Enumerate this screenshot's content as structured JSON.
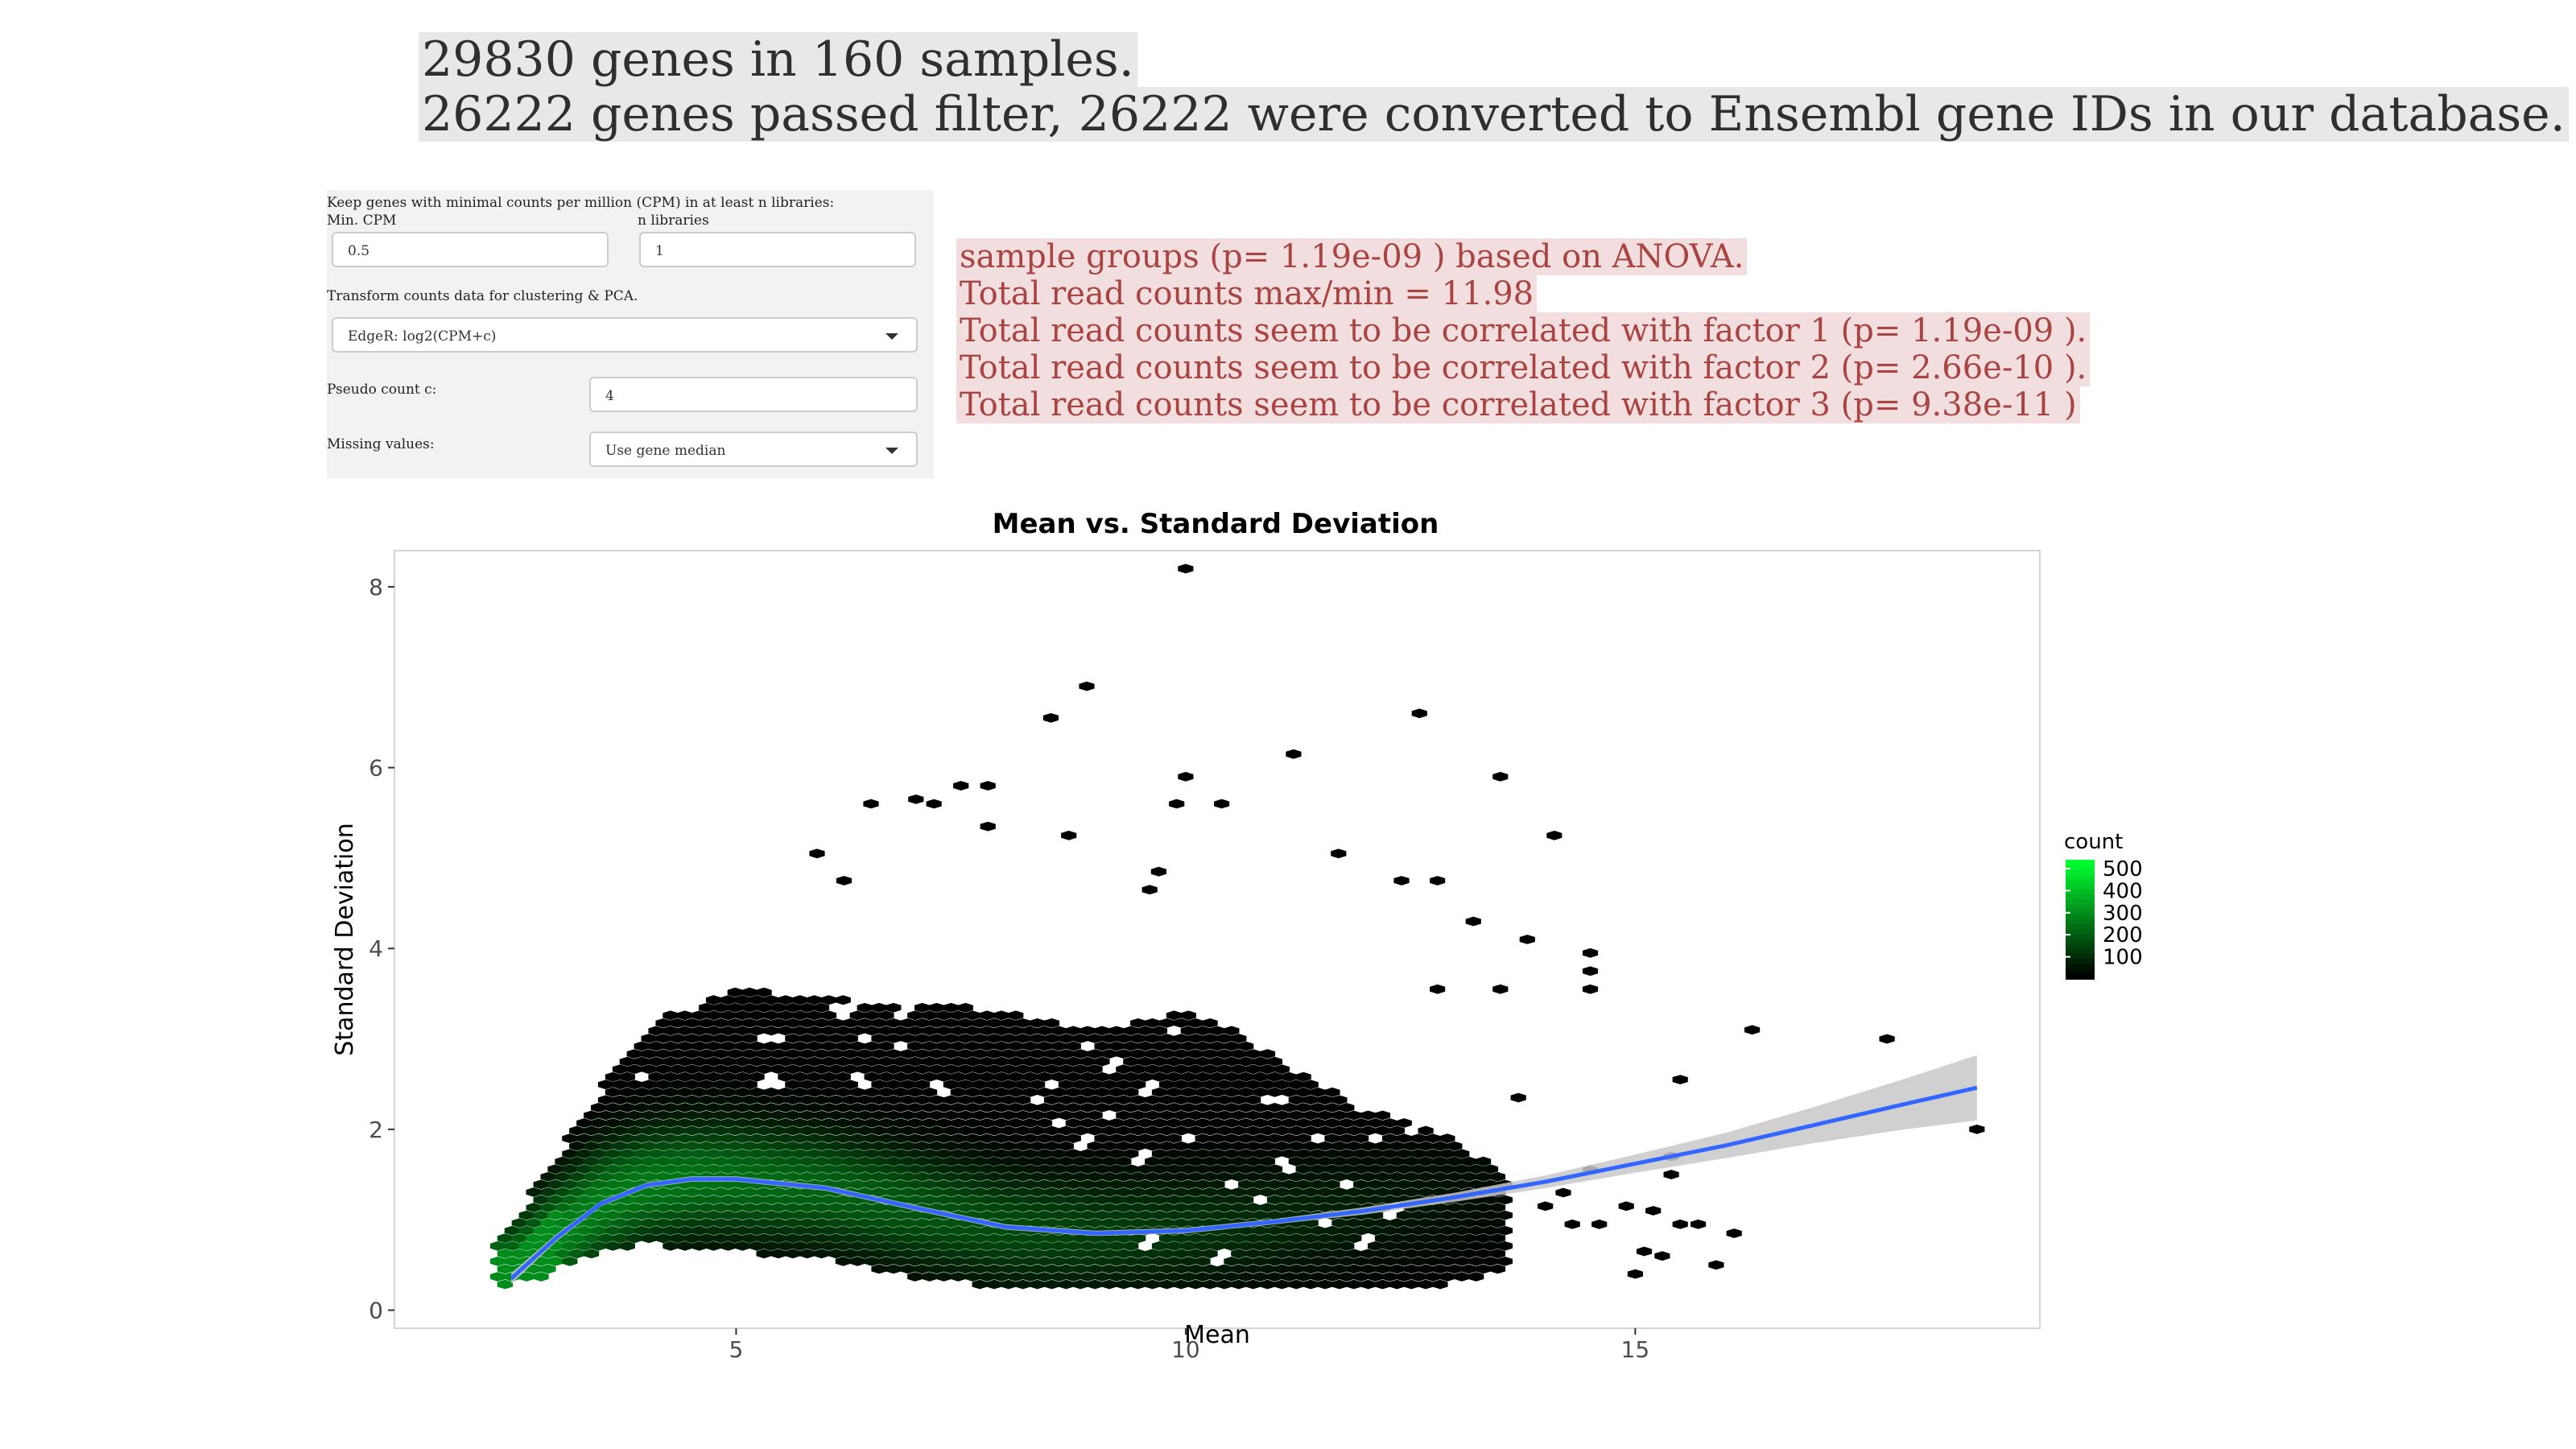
{
  "summary": {
    "line1": "29830 genes in 160 samples.",
    "line2": "26222 genes passed filter, 26222 were converted to Ensembl gene IDs in our database."
  },
  "filter_panel": {
    "description": "Keep genes with minimal counts per million (CPM) in at least n libraries:",
    "min_cpm_label": "Min. CPM",
    "min_cpm_value": "0.5",
    "n_libraries_label": "n libraries",
    "n_libraries_value": "1",
    "transform_label": "Transform counts data for clustering & PCA.",
    "transform_value": "EdgeR: log2(CPM+c)",
    "pseudo_label": "Pseudo count c:",
    "pseudo_value": "4",
    "missing_label": "Missing values:",
    "missing_value": "Use gene median"
  },
  "messages": [
    "sample groups (p= 1.19e-09 ) based on ANOVA.",
    "Total read counts max/min = 11.98",
    "Total read counts seem to be correlated with factor 1 (p= 1.19e-09 ).",
    "Total read counts seem to be correlated with factor 2 (p= 2.66e-10 ).",
    "Total read counts seem to be correlated with factor 3 (p= 9.38e-11 )"
  ],
  "colors": {
    "hex_low": "#000000",
    "hex_high": "#00ff2f",
    "smooth_line": "#3366ff",
    "confidence_band": "#c8c8c8",
    "message_text": "#a94442",
    "message_bg": "#f2dede"
  },
  "chart_data": {
    "type": "heatmap",
    "subtype": "hexbin scatter with loess smooth",
    "title": "Mean vs. Standard Deviation",
    "xlabel": "Mean",
    "ylabel": "Standard Deviation",
    "xlim": [
      1.2,
      19.5
    ],
    "ylim": [
      -0.2,
      8.4
    ],
    "xticks": [
      5,
      10,
      15
    ],
    "yticks": [
      0,
      2,
      4,
      6,
      8
    ],
    "legend": {
      "title": "count",
      "position": "right",
      "ticks": [
        100,
        200,
        300,
        400,
        500
      ],
      "max": 540
    },
    "smooth_curve": {
      "x": [
        2.5,
        3.0,
        3.5,
        4.0,
        4.5,
        5.0,
        6.0,
        7.0,
        8.0,
        9.0,
        10.0,
        11.0,
        12.0,
        13.0,
        14.0,
        15.0,
        16.0,
        17.0,
        18.0,
        18.8
      ],
      "y": [
        0.35,
        0.8,
        1.18,
        1.38,
        1.45,
        1.45,
        1.35,
        1.13,
        0.92,
        0.85,
        0.88,
        0.98,
        1.1,
        1.25,
        1.42,
        1.62,
        1.82,
        2.05,
        2.28,
        2.46
      ],
      "se": [
        0.06,
        0.04,
        0.03,
        0.03,
        0.03,
        0.03,
        0.03,
        0.03,
        0.03,
        0.03,
        0.03,
        0.03,
        0.04,
        0.05,
        0.07,
        0.1,
        0.14,
        0.2,
        0.28,
        0.36
      ]
    },
    "density_envelope": {
      "mean": [
        2.4,
        2.8,
        3.2,
        3.6,
        4.0,
        4.5,
        5.0,
        5.5,
        6.0,
        6.5,
        7.0,
        7.5,
        8.0,
        8.5,
        9.0,
        9.5,
        10.0,
        10.5,
        11.0,
        11.5,
        12.0,
        12.5,
        13.0,
        13.5
      ],
      "sd_low": [
        0.25,
        0.35,
        0.55,
        0.7,
        0.72,
        0.68,
        0.65,
        0.6,
        0.55,
        0.45,
        0.35,
        0.3,
        0.25,
        0.22,
        0.22,
        0.22,
        0.22,
        0.22,
        0.22,
        0.22,
        0.22,
        0.25,
        0.3,
        0.45
      ],
      "sd_high": [
        0.8,
        1.4,
        2.0,
        2.6,
        3.1,
        3.4,
        3.55,
        3.5,
        3.45,
        3.4,
        3.4,
        3.35,
        3.3,
        3.2,
        3.1,
        3.2,
        3.3,
        3.1,
        2.8,
        2.5,
        2.2,
        2.1,
        1.9,
        1.5
      ]
    },
    "outliers": [
      [
        10.0,
        8.2
      ],
      [
        8.9,
        6.9
      ],
      [
        8.5,
        6.55
      ],
      [
        12.6,
        6.6
      ],
      [
        11.2,
        6.15
      ],
      [
        10.0,
        5.9
      ],
      [
        13.5,
        5.9
      ],
      [
        7.5,
        5.8
      ],
      [
        7.8,
        5.8
      ],
      [
        6.5,
        5.6
      ],
      [
        7.0,
        5.65
      ],
      [
        7.2,
        5.6
      ],
      [
        9.9,
        5.6
      ],
      [
        10.4,
        5.6
      ],
      [
        7.8,
        5.35
      ],
      [
        8.7,
        5.25
      ],
      [
        14.1,
        5.25
      ],
      [
        11.7,
        5.05
      ],
      [
        5.9,
        5.05
      ],
      [
        9.7,
        4.85
      ],
      [
        12.4,
        4.75
      ],
      [
        12.8,
        4.75
      ],
      [
        9.6,
        4.65
      ],
      [
        6.2,
        4.75
      ],
      [
        13.2,
        4.3
      ],
      [
        13.8,
        4.1
      ],
      [
        14.5,
        3.95
      ],
      [
        14.5,
        3.75
      ],
      [
        14.5,
        3.55
      ],
      [
        13.5,
        3.55
      ],
      [
        12.8,
        3.55
      ],
      [
        16.3,
        3.1
      ],
      [
        17.8,
        3.0
      ],
      [
        15.5,
        2.55
      ],
      [
        13.7,
        2.35
      ],
      [
        15.4,
        1.7
      ],
      [
        15.4,
        1.5
      ],
      [
        14.5,
        1.55
      ],
      [
        14.2,
        1.3
      ],
      [
        14.0,
        1.15
      ],
      [
        14.3,
        0.95
      ],
      [
        14.6,
        0.95
      ],
      [
        14.9,
        1.15
      ],
      [
        15.1,
        0.65
      ],
      [
        15.3,
        0.6
      ],
      [
        15.0,
        0.4
      ],
      [
        15.5,
        0.95
      ],
      [
        15.7,
        0.95
      ],
      [
        15.2,
        1.1
      ],
      [
        16.1,
        0.85
      ],
      [
        15.9,
        0.5
      ],
      [
        18.8,
        2.0
      ]
    ],
    "holes": [
      [
        4.5,
        3.35
      ],
      [
        5.4,
        3.0
      ],
      [
        6.2,
        3.3
      ],
      [
        6.5,
        3.0
      ],
      [
        6.8,
        2.9
      ],
      [
        6.4,
        2.55
      ],
      [
        5.4,
        2.55
      ],
      [
        4.0,
        2.6
      ],
      [
        7.3,
        2.45
      ],
      [
        6.9,
        3.3
      ],
      [
        8.3,
        2.3
      ],
      [
        8.5,
        2.5
      ],
      [
        8.9,
        2.9
      ],
      [
        9.2,
        2.7
      ],
      [
        9.6,
        2.45
      ],
      [
        9.1,
        2.15
      ],
      [
        8.6,
        2.05
      ],
      [
        9.9,
        3.1
      ],
      [
        10.1,
        1.9
      ],
      [
        9.5,
        1.7
      ],
      [
        8.9,
        1.85
      ],
      [
        11.0,
        2.3
      ],
      [
        11.5,
        1.9
      ],
      [
        11.1,
        1.6
      ],
      [
        11.8,
        1.4
      ],
      [
        12.1,
        1.9
      ],
      [
        12.5,
        2.0
      ],
      [
        12.3,
        1.1
      ],
      [
        11.6,
        0.95
      ],
      [
        12.0,
        0.75
      ],
      [
        10.9,
        1.2
      ],
      [
        10.4,
        0.6
      ],
      [
        9.6,
        0.75
      ],
      [
        10.5,
        1.4
      ]
    ]
  }
}
